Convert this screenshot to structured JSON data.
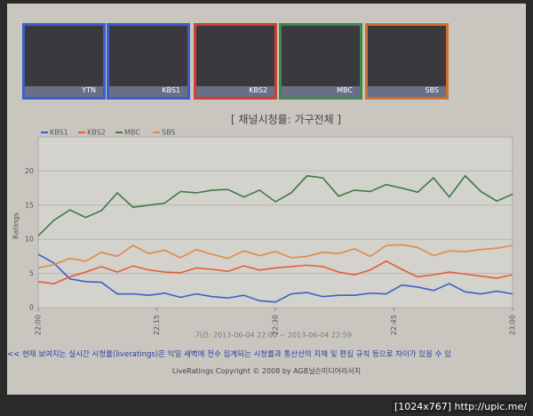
{
  "header": {
    "channels": [
      "YTN",
      "KBS1",
      "KBS2",
      "MBC",
      "SBS"
    ]
  },
  "chart_data": {
    "type": "line",
    "title": "[ 채널시청률: 가구전체 ]",
    "y_label": "Ratings",
    "note": "기간: 2013-06-04 22:00 ~ 2013-06-04 22:59",
    "x": [
      0,
      2,
      4,
      6,
      8,
      10,
      12,
      14,
      16,
      18,
      20,
      22,
      24,
      26,
      28,
      30,
      32,
      34,
      36,
      38,
      40,
      42,
      44,
      46,
      48,
      50,
      52,
      54,
      56,
      58,
      60
    ],
    "xlim": [
      0,
      60
    ],
    "xticks": [
      {
        "value": 0,
        "label": "22:00"
      },
      {
        "value": 15,
        "label": "22:15"
      },
      {
        "value": 30,
        "label": "22:30"
      },
      {
        "value": 45,
        "label": "22:45"
      },
      {
        "value": 60,
        "label": "23:00"
      }
    ],
    "ylim": [
      0,
      25
    ],
    "yticks": [
      0,
      5,
      10,
      15,
      20
    ],
    "grid": true,
    "series": [
      {
        "name": "KBS1",
        "color": "#3a5fc8",
        "values": [
          7.8,
          6.5,
          4.2,
          3.8,
          3.7,
          2,
          2,
          1.8,
          2.1,
          1.5,
          2,
          1.6,
          1.4,
          1.8,
          1,
          0.8,
          2,
          2.2,
          1.6,
          1.8,
          1.8,
          2.1,
          2,
          3.3,
          3,
          2.5,
          3.5,
          2.3,
          2,
          2.4,
          2
        ]
      },
      {
        "name": "KBS2",
        "color": "#e0603a",
        "values": [
          3.8,
          3.5,
          4.5,
          5.2,
          6,
          5.2,
          6.1,
          5.5,
          5.2,
          5.1,
          5.8,
          5.6,
          5.3,
          6.1,
          5.5,
          5.8,
          6,
          6.2,
          6,
          5.2,
          4.8,
          5.5,
          6.8,
          5.6,
          4.5,
          4.8,
          5.2,
          4.9,
          4.6,
          4.3,
          4.8
        ]
      },
      {
        "name": "MBC",
        "color": "#3d7a4a",
        "values": [
          10.5,
          12.8,
          14.3,
          13.2,
          14.2,
          16.8,
          14.7,
          15,
          15.3,
          17,
          16.8,
          17.2,
          17.3,
          16.2,
          17.2,
          15.5,
          16.8,
          19.3,
          19,
          16.3,
          17.2,
          17,
          18,
          17.5,
          16.9,
          19,
          16.2,
          19.3,
          17,
          15.6,
          16.6
        ]
      },
      {
        "name": "SBS",
        "color": "#e08a4a",
        "values": [
          5.8,
          6.3,
          7.2,
          6.8,
          8.1,
          7.5,
          9.1,
          7.9,
          8.4,
          7.3,
          8.5,
          7.8,
          7.2,
          8.3,
          7.6,
          8.2,
          7.3,
          7.5,
          8.1,
          7.9,
          8.6,
          7.5,
          9.1,
          9.2,
          8.8,
          7.6,
          8.3,
          8.2,
          8.5,
          8.7,
          9.1
        ]
      }
    ]
  },
  "footer": {
    "notice": "<< 현재 보여지는 실시간 시청률(liveratings)은 익일 새벽에 전수 집계되는 시청률과 통산산의 지체 및 편집 규칙 등으로 차이가 있을 수 있",
    "copyright": "LiveRatings Copyright © 2008 by AGB닐슨미디어리서치"
  },
  "watermark": "[1024x767] http://upic.me/"
}
